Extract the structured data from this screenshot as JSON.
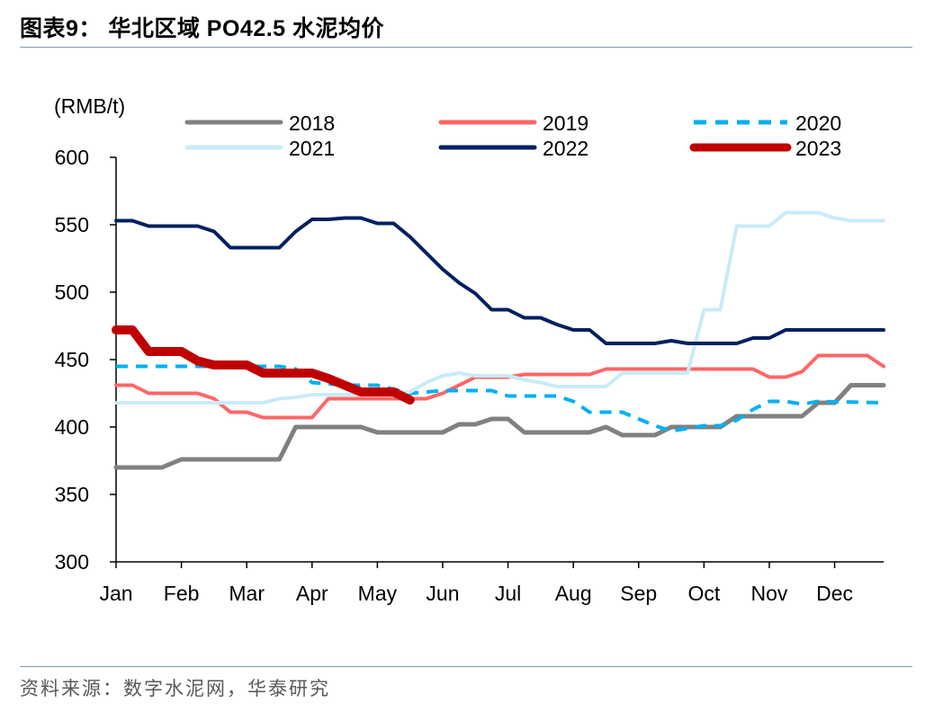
{
  "header": {
    "title": "图表9：  华北区域 PO42.5 水泥均价"
  },
  "footer": {
    "source": "资料来源：数字水泥网，华泰研究"
  },
  "chart_data": {
    "type": "line",
    "unit_label": "(RMB/t)",
    "ylim": [
      300,
      600
    ],
    "yticks": [
      300,
      350,
      400,
      450,
      500,
      550,
      600
    ],
    "x_range": [
      1,
      12.75
    ],
    "x_ticks": [
      {
        "label": "Jan",
        "x": 1
      },
      {
        "label": "Feb",
        "x": 2
      },
      {
        "label": "Mar",
        "x": 3
      },
      {
        "label": "Apr",
        "x": 4
      },
      {
        "label": "May",
        "x": 5
      },
      {
        "label": "Jun",
        "x": 6
      },
      {
        "label": "Jul",
        "x": 7
      },
      {
        "label": "Aug",
        "x": 8
      },
      {
        "label": "Sep",
        "x": 9
      },
      {
        "label": "Oct",
        "x": 10
      },
      {
        "label": "Nov",
        "x": 11
      },
      {
        "label": "Dec",
        "x": 12
      }
    ],
    "grid": false,
    "legend_position": "top",
    "series": [
      {
        "name": "2018",
        "color": "#808080",
        "dash": "solid",
        "width": 5,
        "points": [
          [
            1,
            370
          ],
          [
            1.7,
            370
          ],
          [
            2,
            376
          ],
          [
            3.5,
            376
          ],
          [
            3.75,
            400
          ],
          [
            4.75,
            400
          ],
          [
            5,
            396
          ],
          [
            6,
            396
          ],
          [
            6.25,
            402
          ],
          [
            6.5,
            402
          ],
          [
            6.75,
            406
          ],
          [
            7,
            406
          ],
          [
            7.25,
            396
          ],
          [
            8.25,
            396
          ],
          [
            8.5,
            400
          ],
          [
            8.75,
            394
          ],
          [
            9.25,
            394
          ],
          [
            9.5,
            400
          ],
          [
            10.25,
            400
          ],
          [
            10.5,
            408
          ],
          [
            11.5,
            408
          ],
          [
            11.75,
            418
          ],
          [
            12,
            418
          ],
          [
            12.25,
            431
          ],
          [
            12.75,
            431
          ]
        ]
      },
      {
        "name": "2019",
        "color": "#ff6666",
        "dash": "solid",
        "width": 4,
        "points": [
          [
            1,
            431
          ],
          [
            1.25,
            431
          ],
          [
            1.5,
            425
          ],
          [
            2.25,
            425
          ],
          [
            2.5,
            421
          ],
          [
            2.75,
            411
          ],
          [
            3,
            411
          ],
          [
            3.25,
            407
          ],
          [
            4,
            407
          ],
          [
            4.25,
            421
          ],
          [
            5.5,
            421
          ],
          [
            5.75,
            421
          ],
          [
            6,
            425
          ],
          [
            6.25,
            431
          ],
          [
            6.5,
            437
          ],
          [
            7,
            437
          ],
          [
            7.25,
            439
          ],
          [
            8.25,
            439
          ],
          [
            8.5,
            443
          ],
          [
            10.75,
            443
          ],
          [
            11,
            437
          ],
          [
            11.25,
            437
          ],
          [
            11.5,
            441
          ],
          [
            11.75,
            453
          ],
          [
            12.5,
            453
          ],
          [
            12.75,
            445
          ]
        ]
      },
      {
        "name": "2020",
        "color": "#00b0f0",
        "dash": "dashed",
        "width": 4,
        "points": [
          [
            1,
            445
          ],
          [
            3.5,
            445
          ],
          [
            3.75,
            443
          ],
          [
            4,
            433
          ],
          [
            4.5,
            431
          ],
          [
            5,
            431
          ],
          [
            5.5,
            425
          ],
          [
            6,
            427
          ],
          [
            6.5,
            427
          ],
          [
            6.75,
            427
          ],
          [
            7,
            423
          ],
          [
            7.25,
            423
          ],
          [
            7.5,
            423
          ],
          [
            7.75,
            423
          ],
          [
            8,
            419
          ],
          [
            8.25,
            411
          ],
          [
            8.75,
            411
          ],
          [
            9,
            406
          ],
          [
            9.25,
            401
          ],
          [
            9.5,
            397
          ],
          [
            9.75,
            399
          ],
          [
            10,
            401
          ],
          [
            10.25,
            401
          ],
          [
            10.5,
            405
          ],
          [
            10.75,
            413
          ],
          [
            11,
            419
          ],
          [
            11.25,
            419
          ],
          [
            11.5,
            417
          ],
          [
            11.75,
            419
          ],
          [
            12.75,
            418
          ]
        ]
      },
      {
        "name": "2021",
        "color": "#c8ebf8",
        "dash": "solid",
        "width": 4,
        "points": [
          [
            1,
            418
          ],
          [
            3.25,
            418
          ],
          [
            3.5,
            421
          ],
          [
            3.75,
            422
          ],
          [
            4,
            424
          ],
          [
            4.5,
            424
          ],
          [
            5,
            424
          ],
          [
            5.5,
            426
          ],
          [
            5.75,
            433
          ],
          [
            6,
            438
          ],
          [
            6.25,
            440
          ],
          [
            6.5,
            438
          ],
          [
            7,
            438
          ],
          [
            7.25,
            435
          ],
          [
            7.5,
            433
          ],
          [
            7.75,
            430
          ],
          [
            8.5,
            430
          ],
          [
            8.75,
            440
          ],
          [
            9.25,
            440
          ],
          [
            9.75,
            440
          ],
          [
            10,
            487
          ],
          [
            10.25,
            487
          ],
          [
            10.5,
            549
          ],
          [
            11,
            549
          ],
          [
            11.25,
            559
          ],
          [
            11.75,
            559
          ],
          [
            12,
            555
          ],
          [
            12.25,
            553
          ],
          [
            12.75,
            553
          ]
        ]
      },
      {
        "name": "2022",
        "color": "#002060",
        "dash": "solid",
        "width": 4,
        "points": [
          [
            1,
            553
          ],
          [
            1.25,
            553
          ],
          [
            1.5,
            549
          ],
          [
            2.25,
            549
          ],
          [
            2.5,
            545
          ],
          [
            2.75,
            533
          ],
          [
            3.5,
            533
          ],
          [
            3.75,
            545
          ],
          [
            4,
            554
          ],
          [
            4.25,
            554
          ],
          [
            4.5,
            555
          ],
          [
            4.75,
            555
          ],
          [
            5,
            551
          ],
          [
            5.25,
            551
          ],
          [
            5.5,
            541
          ],
          [
            5.75,
            529
          ],
          [
            6,
            517
          ],
          [
            6.25,
            507
          ],
          [
            6.5,
            499
          ],
          [
            6.75,
            487
          ],
          [
            7,
            487
          ],
          [
            7.25,
            481
          ],
          [
            7.5,
            481
          ],
          [
            7.75,
            476
          ],
          [
            8,
            472
          ],
          [
            8.25,
            472
          ],
          [
            8.5,
            462
          ],
          [
            9.25,
            462
          ],
          [
            9.5,
            464
          ],
          [
            9.75,
            462
          ],
          [
            10.5,
            462
          ],
          [
            10.75,
            466
          ],
          [
            11,
            466
          ],
          [
            11.25,
            472
          ],
          [
            12.75,
            472
          ]
        ]
      },
      {
        "name": "2023",
        "color": "#c00000",
        "dash": "solid",
        "width": 10,
        "points": [
          [
            1,
            472
          ],
          [
            1.25,
            472
          ],
          [
            1.5,
            456
          ],
          [
            2,
            456
          ],
          [
            2.25,
            449
          ],
          [
            2.5,
            446
          ],
          [
            3,
            446
          ],
          [
            3.25,
            440
          ],
          [
            4,
            440
          ],
          [
            4.25,
            436
          ],
          [
            4.5,
            431
          ],
          [
            4.75,
            426
          ],
          [
            5.25,
            426
          ],
          [
            5.5,
            420
          ]
        ]
      }
    ]
  }
}
